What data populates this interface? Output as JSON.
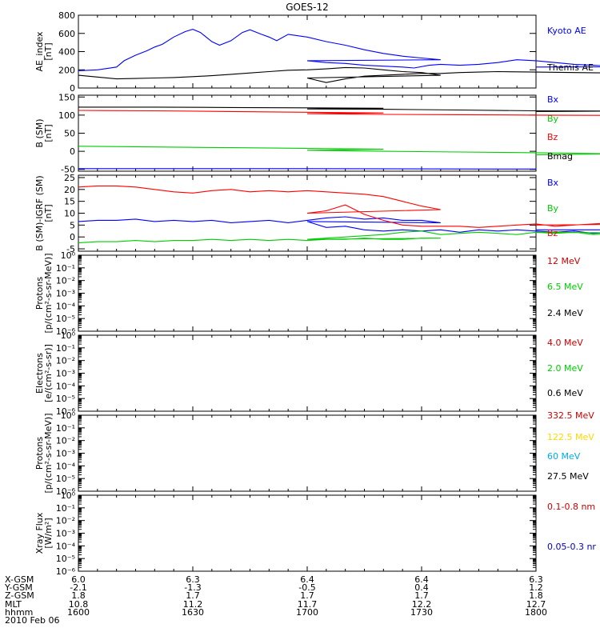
{
  "title": "GOES-12",
  "chart_data": [
    {
      "id": "ae",
      "type": "line",
      "ylabel": [
        "AE_index",
        "[nT]"
      ],
      "ylim": [
        0,
        800
      ],
      "yticks": [
        0,
        200,
        400,
        600,
        800
      ],
      "yticklabels": [
        "0",
        "200",
        "400",
        "600",
        "800"
      ],
      "log": false,
      "series": [
        {
          "name": "Kyoto AE",
          "color": "#0000ff",
          "x": [
            1600,
            1605,
            1610,
            1612,
            1615,
            1618,
            1620,
            1622,
            1625,
            1628,
            1630,
            1632,
            1635,
            1637,
            1640,
            1643,
            1645,
            1648,
            1650,
            1652,
            1655,
            1660,
            1665,
            1670,
            1675,
            1680,
            1685,
            1690,
            1695,
            1700,
            1705,
            1710,
            1715,
            1720,
            1725,
            1728,
            1732,
            1735,
            1740,
            1745,
            1750,
            1755,
            1760,
            1765,
            1770,
            1775,
            1780,
            1790,
            1800
          ],
          "y": [
            190,
            200,
            230,
            300,
            360,
            410,
            450,
            480,
            560,
            620,
            645,
            610,
            510,
            470,
            520,
            610,
            640,
            590,
            560,
            520,
            590,
            560,
            510,
            470,
            420,
            380,
            350,
            330,
            310,
            300,
            280,
            270,
            250,
            240,
            230,
            220,
            250,
            260,
            250,
            260,
            280,
            310,
            300,
            280,
            260,
            250,
            240,
            235,
            230
          ]
        },
        {
          "name": "Themis AE",
          "color": "#000000",
          "x": [
            1600,
            1605,
            1610,
            1615,
            1620,
            1625,
            1630,
            1635,
            1640,
            1645,
            1650,
            1655,
            1660,
            1665,
            1670,
            1675,
            1680,
            1685,
            1690,
            1695,
            1700,
            1705,
            1710,
            1715,
            1720,
            1725,
            1730,
            1735,
            1740,
            1745,
            1750,
            1760,
            1770,
            1780,
            1790,
            1800
          ],
          "y": [
            140,
            120,
            100,
            105,
            110,
            115,
            125,
            135,
            150,
            165,
            180,
            195,
            200,
            210,
            225,
            220,
            200,
            180,
            170,
            140,
            110,
            60,
            100,
            130,
            140,
            150,
            160,
            160,
            170,
            175,
            180,
            175,
            170,
            165,
            160,
            175
          ]
        }
      ]
    },
    {
      "id": "bsm",
      "type": "line",
      "ylabel": [
        "B (SM)",
        "[nT]"
      ],
      "ylim": [
        -55,
        155
      ],
      "yticks": [
        -50,
        0,
        50,
        100,
        150
      ],
      "yticklabels": [
        "-50",
        "0",
        "50",
        "100",
        "150"
      ],
      "log": false,
      "series": [
        {
          "name": "Bx",
          "color": "#0000ff",
          "x": [
            1600,
            1650,
            1700,
            1750,
            1800
          ],
          "y": [
            -48,
            -48,
            -48,
            -49,
            -49
          ]
        },
        {
          "name": "By",
          "color": "#00cc00",
          "x": [
            1600,
            1620,
            1640,
            1660,
            1680,
            1700,
            1720,
            1740,
            1760,
            1780,
            1800
          ],
          "y": [
            14,
            12,
            10,
            8,
            6,
            3,
            0,
            -2,
            -4,
            -7,
            -10
          ]
        },
        {
          "name": "Bz",
          "color": "#ff0000",
          "x": [
            1600,
            1620,
            1640,
            1660,
            1680,
            1700,
            1720,
            1740,
            1760,
            1780,
            1800
          ],
          "y": [
            113,
            112,
            110,
            108,
            106,
            104,
            102,
            101,
            100,
            99,
            100
          ]
        },
        {
          "name": "Bmag",
          "color": "#000000",
          "x": [
            1600,
            1620,
            1640,
            1660,
            1680,
            1700,
            1720,
            1740,
            1760,
            1780,
            1800
          ],
          "y": [
            122,
            122,
            121,
            120,
            119,
            117,
            116,
            114,
            112,
            111,
            110
          ]
        }
      ]
    },
    {
      "id": "bdiff",
      "type": "line",
      "ylabel": [
        "B (SM)-IGRF (SM)",
        "[nT]"
      ],
      "ylim": [
        -6,
        26
      ],
      "yticks": [
        -5,
        0,
        5,
        10,
        15,
        20,
        25
      ],
      "yticklabels": [
        "-5",
        "0",
        "5",
        "10",
        "15",
        "20",
        "25"
      ],
      "log": false,
      "series": [
        {
          "name": "Bx",
          "color": "#0000ff",
          "x": [
            1600,
            1605,
            1610,
            1615,
            1620,
            1625,
            1630,
            1635,
            1640,
            1645,
            1650,
            1655,
            1660,
            1665,
            1670,
            1675,
            1680,
            1685,
            1690,
            1695,
            1700,
            1705,
            1710,
            1715,
            1720,
            1725,
            1730,
            1735,
            1740,
            1745,
            1750,
            1755,
            1760,
            1765,
            1770,
            1775,
            1780,
            1785,
            1790,
            1795,
            1800
          ],
          "y": [
            6.5,
            7,
            7,
            7.5,
            6.5,
            7,
            6.5,
            7,
            6,
            6.5,
            7,
            6,
            7,
            8,
            8.5,
            7.5,
            8,
            7,
            7,
            6,
            6.5,
            4,
            4.5,
            3,
            2.5,
            3,
            2.5,
            3,
            2,
            3,
            2.5,
            3,
            2.5,
            2,
            2.5,
            1.5,
            2,
            3,
            2.5,
            3,
            3
          ]
        },
        {
          "name": "By",
          "color": "#00cc00",
          "x": [
            1600,
            1605,
            1610,
            1615,
            1620,
            1625,
            1630,
            1635,
            1640,
            1645,
            1650,
            1655,
            1660,
            1665,
            1670,
            1675,
            1680,
            1685,
            1690,
            1695,
            1700,
            1705,
            1710,
            1715,
            1720,
            1725,
            1730,
            1735,
            1740,
            1745,
            1750,
            1755,
            1760,
            1765,
            1770,
            1775,
            1780,
            1785,
            1790,
            1795,
            1800
          ],
          "y": [
            -2.5,
            -2,
            -2,
            -1.5,
            -2,
            -1.5,
            -1.5,
            -1,
            -1.5,
            -1,
            -1.5,
            -1,
            -1.5,
            -1,
            -1,
            -0.5,
            -1,
            -1,
            -0.5,
            -0.5,
            -1,
            -0.5,
            0,
            0.5,
            1,
            2,
            2.5,
            1,
            1.5,
            2,
            1.5,
            1,
            2,
            1.5,
            2,
            1,
            1.5,
            2,
            1,
            1.5,
            2
          ]
        },
        {
          "name": "Bz",
          "color": "#ff0000",
          "x": [
            1600,
            1605,
            1610,
            1615,
            1620,
            1625,
            1630,
            1635,
            1640,
            1645,
            1650,
            1655,
            1660,
            1665,
            1670,
            1675,
            1680,
            1685,
            1690,
            1695,
            1700,
            1705,
            1710,
            1715,
            1720,
            1725,
            1730,
            1735,
            1740,
            1745,
            1750,
            1755,
            1760,
            1765,
            1770,
            1775,
            1780,
            1785,
            1790,
            1795,
            1800
          ],
          "y": [
            21,
            21.5,
            21.5,
            21,
            20,
            19,
            18.5,
            19.5,
            20,
            19,
            19.5,
            19,
            19.5,
            19,
            18.5,
            18,
            17,
            15,
            13,
            11.5,
            10,
            11,
            13.5,
            9.5,
            7,
            5,
            4.5,
            4.5,
            4.5,
            4,
            4.5,
            5,
            5.5,
            4.5,
            5,
            5.5,
            6,
            5.5,
            6,
            5.5,
            5
          ]
        }
      ]
    },
    {
      "id": "protons1",
      "type": "line",
      "ylabel": [
        "Protons",
        "[p/(cm²-s-sr-MeV)]"
      ],
      "ylim": [
        -6,
        0
      ],
      "log": true,
      "yticks": [
        0,
        -1,
        -2,
        -3,
        -4,
        -5,
        -6
      ],
      "yticklabels": [
        "10⁰",
        "10⁻¹",
        "10⁻²",
        "10⁻³",
        "10⁻⁴",
        "10⁻⁵",
        "10⁻⁶"
      ],
      "series": [
        {
          "name": "12 MeV",
          "color": "#cc0000",
          "x": [],
          "y": []
        },
        {
          "name": "6.5 MeV",
          "color": "#00cc00",
          "x": [],
          "y": []
        },
        {
          "name": "2.4 MeV",
          "color": "#000000",
          "x": [],
          "y": []
        }
      ]
    },
    {
      "id": "electrons",
      "type": "line",
      "ylabel": [
        "Electrons",
        "[e/(cm²-s-sr)]"
      ],
      "ylim": [
        -6,
        0
      ],
      "log": true,
      "yticks": [
        0,
        -1,
        -2,
        -3,
        -4,
        -5,
        -6
      ],
      "yticklabels": [
        "10⁰",
        "10⁻¹",
        "10⁻²",
        "10⁻³",
        "10⁻⁴",
        "10⁻⁵",
        "10⁻⁶"
      ],
      "series": [
        {
          "name": "4.0 MeV",
          "color": "#cc0000",
          "x": [],
          "y": []
        },
        {
          "name": "2.0 MeV",
          "color": "#00cc00",
          "x": [],
          "y": []
        },
        {
          "name": "0.6 MeV",
          "color": "#000000",
          "x": [],
          "y": []
        }
      ]
    },
    {
      "id": "protons2",
      "type": "line",
      "ylabel": [
        "Protons",
        "[p/(cm²-s-sr-MeV)]"
      ],
      "ylim": [
        -6,
        0
      ],
      "log": true,
      "yticks": [
        0,
        -1,
        -2,
        -3,
        -4,
        -5,
        -6
      ],
      "yticklabels": [
        "10⁰",
        "10⁻¹",
        "10⁻²",
        "10⁻³",
        "10⁻⁴",
        "10⁻⁵",
        "10⁻⁶"
      ],
      "series": [
        {
          "name": "332.5 MeV",
          "color": "#cc0000",
          "x": [],
          "y": []
        },
        {
          "name": "122.5 MeV",
          "color": "#ffd700",
          "x": [],
          "y": []
        },
        {
          "name": "60 MeV",
          "color": "#00aaee",
          "x": [],
          "y": []
        },
        {
          "name": "27.5 MeV",
          "color": "#000000",
          "x": [],
          "y": []
        }
      ]
    },
    {
      "id": "xray",
      "type": "line",
      "ylabel": [
        "Xray  Flux",
        "[W/m²]"
      ],
      "ylim": [
        -6,
        0
      ],
      "log": true,
      "yticks": [
        0,
        -1,
        -2,
        -3,
        -4,
        -5,
        -6
      ],
      "yticklabels": [
        "10⁰",
        "10⁻¹",
        "10⁻²",
        "10⁻³",
        "10⁻⁴",
        "10⁻⁵",
        "10⁻⁶"
      ],
      "series": [
        {
          "name": "0.1-0.8 nm",
          "color": "#cc0000",
          "x": [],
          "y": []
        },
        {
          "name": "0.05-0.3 nr",
          "color": "#0000cc",
          "x": [],
          "y": []
        }
      ]
    }
  ],
  "x_axis": {
    "min": 1600,
    "max": 1800,
    "ticks": [
      1600,
      1630,
      1700,
      1730,
      1800
    ],
    "minor_step": 5
  },
  "ephemeris": {
    "rows": [
      {
        "label": "X-GSM",
        "values": [
          "6.0",
          "6.3",
          "6.4",
          "6.4",
          "6.3"
        ]
      },
      {
        "label": "Y-GSM",
        "values": [
          "-2.1",
          "-1.3",
          "-0.5",
          "0.4",
          "1.2"
        ]
      },
      {
        "label": "Z-GSM",
        "values": [
          "1.8",
          "1.7",
          "1.7",
          "1.7",
          "1.8"
        ]
      },
      {
        "label": "MLT",
        "values": [
          "10.8",
          "11.2",
          "11.7",
          "12.2",
          "12.7"
        ]
      },
      {
        "label": "hhmm",
        "values": [
          "1600",
          "1630",
          "1700",
          "1730",
          "1800"
        ]
      }
    ],
    "date": "2010 Feb 06"
  }
}
